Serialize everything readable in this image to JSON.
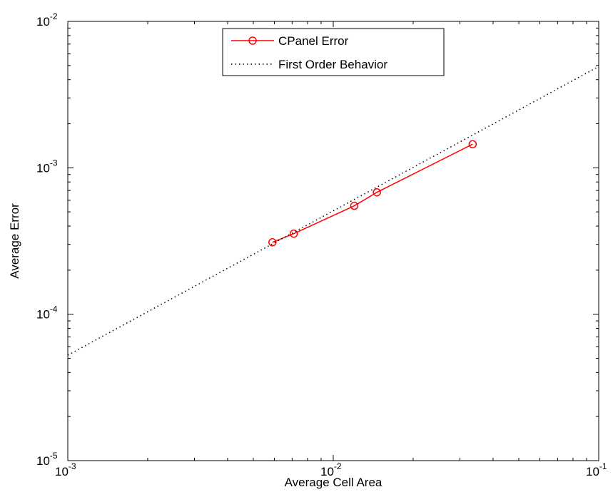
{
  "chart_data": {
    "type": "line",
    "x_scale": "log",
    "y_scale": "log",
    "xlim": [
      0.001,
      0.1
    ],
    "ylim": [
      1e-05,
      0.01
    ],
    "xlabel": "Average Cell Area",
    "ylabel": "Average Error",
    "x_ticks": [
      {
        "value": 0.001,
        "base": "10",
        "exp": "-3"
      },
      {
        "value": 0.01,
        "base": "10",
        "exp": "-2"
      },
      {
        "value": 0.1,
        "base": "10",
        "exp": "-1"
      }
    ],
    "y_ticks": [
      {
        "value": 1e-05,
        "base": "10",
        "exp": "-5"
      },
      {
        "value": 0.0001,
        "base": "10",
        "exp": "-4"
      },
      {
        "value": 0.001,
        "base": "10",
        "exp": "-3"
      },
      {
        "value": 0.01,
        "base": "10",
        "exp": "-2"
      }
    ],
    "grid": false,
    "legend_position": "top-center",
    "series": [
      {
        "name": "CPanel Error",
        "color": "#ff0000",
        "line_style": "solid",
        "marker": "circle",
        "x": [
          0.0059,
          0.0071,
          0.012,
          0.0146,
          0.0335
        ],
        "y": [
          0.00031,
          0.000355,
          0.00055,
          0.00068,
          0.00145
        ]
      },
      {
        "name": "First Order Behavior",
        "color": "#000000",
        "line_style": "dotted",
        "marker": "none",
        "x": [
          0.001,
          0.1
        ],
        "y": [
          5.25e-05,
          0.00492
        ]
      }
    ]
  }
}
